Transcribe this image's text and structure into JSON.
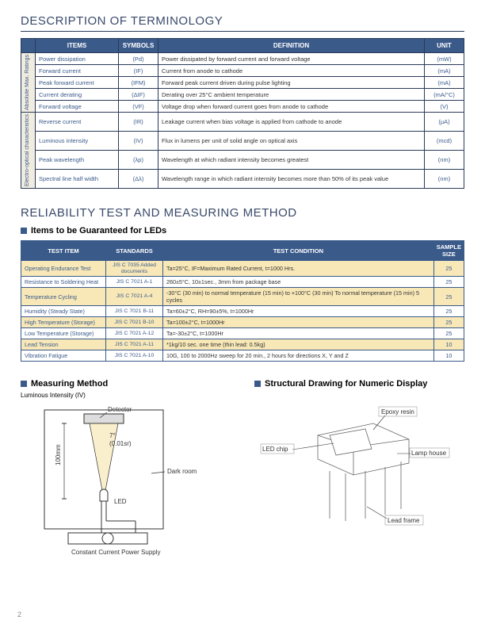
{
  "section1": {
    "title": "DESCRIPTION OF TERMINOLOGY",
    "headers": [
      "ITEMS",
      "SYMBOLS",
      "DEFINITION",
      "UNIT"
    ],
    "group1_label": "Absolute Max. Ratings",
    "group2_label": "Electro-optical characteristics",
    "rows": [
      {
        "item": "Power dissipation",
        "sym": "(Pd)",
        "def": "Power dissipated by forward current and forward voltage",
        "unit": "(mW)"
      },
      {
        "item": "Forward current",
        "sym": "(IF)",
        "def": "Current from anode to cathode",
        "unit": "(mA)"
      },
      {
        "item": "Peak forward current",
        "sym": "(IFM)",
        "def": "Forward peak current driven during pulse lighting",
        "unit": "(mA)"
      },
      {
        "item": "Current derating",
        "sym": "(ΔIF)",
        "def": "Derating over 25°C ambient temperature",
        "unit": "(mA/°C)"
      },
      {
        "item": "Forward voltage",
        "sym": "(VF)",
        "def": "Voltage drop when forward current goes from anode to cathode",
        "unit": "(V)"
      },
      {
        "item": "Reverse current",
        "sym": "(IR)",
        "def": "Leakage current when bias voltage is applied from cathode to anode",
        "unit": "(µA)"
      },
      {
        "item": "Luminous intensity",
        "sym": "(IV)",
        "def": "Flux in lumens per unit of solid angle on optical axis",
        "unit": "(mcd)"
      },
      {
        "item": "Peak wavelength",
        "sym": "(λp)",
        "def": "Wavelength at which radiant intensity becomes greatest",
        "unit": "(nm)"
      },
      {
        "item": "Spectral line half width",
        "sym": "(Δλ)",
        "def": "Wavelength range in which radiant intensity becomes more than 50% of its peak value",
        "unit": "(nm)"
      }
    ]
  },
  "section2": {
    "title": "RELIABILITY TEST AND MEASURING METHOD",
    "subtitle": "Items to be Guaranteed for LEDs",
    "headers": [
      "TEST ITEM",
      "STANDARDS",
      "TEST CONDITION",
      "SAMPLE SIZE"
    ],
    "rows": [
      {
        "hl": true,
        "ti": "Operating Endurance Test",
        "std": "JIS C 7035 Added documents",
        "cond": "Ta=25°C, IF=Maximum Rated Current, t=1000 Hrs.",
        "samp": "25"
      },
      {
        "hl": false,
        "ti": "Resistance to Soldering Heat",
        "std": "JIS C 7021 A-1",
        "cond": "260±5°C, 10±1sec., 3mm from package base",
        "samp": "25"
      },
      {
        "hl": true,
        "ti": "Temperature Cycling",
        "std": "JIS C 7021 A-4",
        "cond": "-30°C (30 min) to normal temperature (15 min) to +100°C (30 min) To normal temperature (15 min) 5 cycles",
        "samp": "25"
      },
      {
        "hl": false,
        "ti": "Humidity (Steady State)",
        "std": "JIS C 7021 B-11",
        "cond": "Ta=60±2°C, RH=90±5%, t=1000Hr",
        "samp": "25"
      },
      {
        "hl": true,
        "ti": "High Temperature (Storage)",
        "std": "JIS C 7021 B-10",
        "cond": "Ta=100±2°C, t=1000Hr",
        "samp": "25"
      },
      {
        "hl": false,
        "ti": "Low Temperature (Storage)",
        "std": "JIS C 7021 A-12",
        "cond": "Ta=-30±2°C, t=1000Hr",
        "samp": "25"
      },
      {
        "hl": true,
        "ti": "Lead Tension",
        "std": "JIS C 7021 A-11",
        "cond": "*1kg/10 sec. one time (thin lead: 0.5kg)",
        "samp": "10"
      },
      {
        "hl": false,
        "ti": "Vibration Fatigue",
        "std": "JIS C 7021 A-10",
        "cond": "10G, 100 to 2000Hz sweep for 20 min., 2 hours for directions X, Y and Z",
        "samp": "10"
      }
    ]
  },
  "lower": {
    "left_title": "Measuring Method",
    "left_sub": "Luminous Intensity (IV)",
    "right_title": "Structural Drawing for Numeric Display",
    "labels": {
      "detector": "Detector",
      "angle": "7°",
      "sr": "(0.01sr)",
      "darkroom": "Dark room",
      "len": "100mm",
      "led": "LED",
      "supply": "Constant Current Power Supply",
      "epoxy": "Epoxy resin",
      "chip": "LED chip",
      "lamp": "Lamp house",
      "lead": "Lead frame"
    }
  },
  "page": "2",
  "colors": {
    "header_bg": "#3a5a8a",
    "border": "#2a3a5a",
    "highlight": "#f8e8b8",
    "vcat_bg": "#f0ece0"
  }
}
